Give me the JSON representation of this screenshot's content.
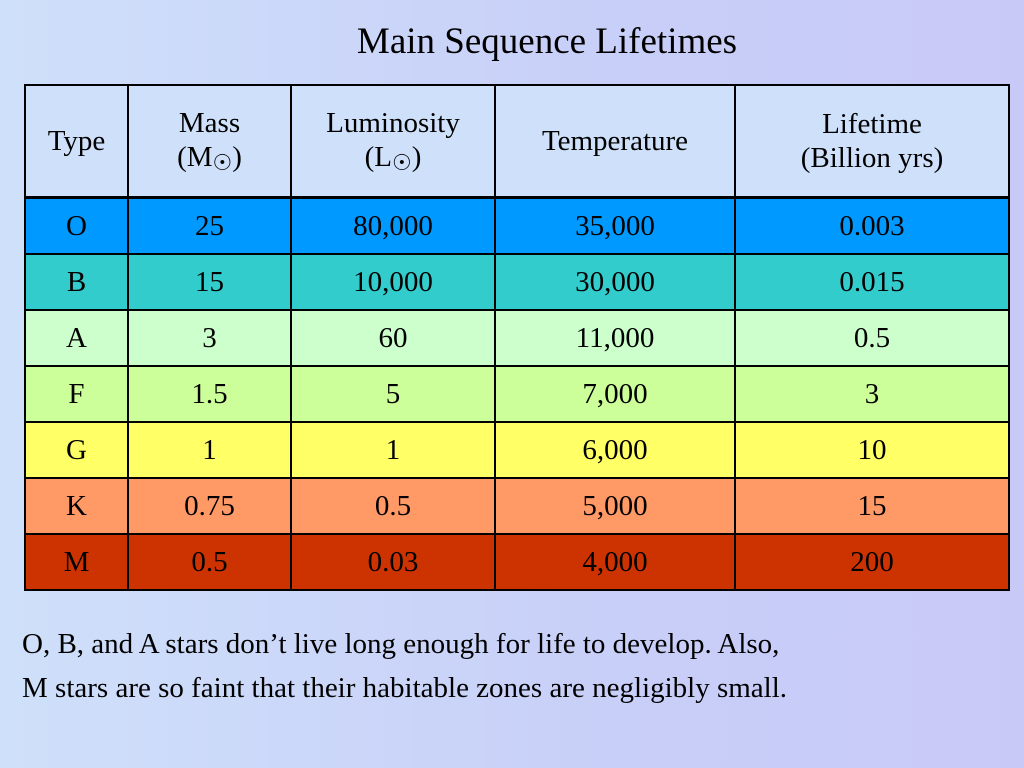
{
  "title": "Main Sequence Lifetimes",
  "table": {
    "header_bg": "#cfe0fa",
    "headers": [
      {
        "line1": "Type"
      },
      {
        "line1": "Mass",
        "line2_pre": "(M",
        "symbol": "☉",
        "line2_post": ")"
      },
      {
        "line1": "Luminosity",
        "line2_pre": "(L",
        "symbol": "☉",
        "line2_post": ")"
      },
      {
        "line1": "Temperature"
      },
      {
        "line1": "Lifetime",
        "line2_pre": "(Billion yrs)"
      }
    ],
    "rows": [
      {
        "type": "O",
        "mass": "25",
        "luminosity": "80,000",
        "temperature": "35,000",
        "lifetime": "0.003",
        "color": "#0099ff"
      },
      {
        "type": "B",
        "mass": "15",
        "luminosity": "10,000",
        "temperature": "30,000",
        "lifetime": "0.015",
        "color": "#33cccc"
      },
      {
        "type": "A",
        "mass": "3",
        "luminosity": "60",
        "temperature": "11,000",
        "lifetime": "0.5",
        "color": "#ccffcc"
      },
      {
        "type": "F",
        "mass": "1.5",
        "luminosity": "5",
        "temperature": "7,000",
        "lifetime": "3",
        "color": "#ccff99"
      },
      {
        "type": "G",
        "mass": "1",
        "luminosity": "1",
        "temperature": "6,000",
        "lifetime": "10",
        "color": "#ffff66"
      },
      {
        "type": "K",
        "mass": "0.75",
        "luminosity": "0.5",
        "temperature": "5,000",
        "lifetime": "15",
        "color": "#ff9966"
      },
      {
        "type": "M",
        "mass": "0.5",
        "luminosity": "0.03",
        "temperature": "4,000",
        "lifetime": "200",
        "color": "#cc3300"
      }
    ]
  },
  "footer": "O, B, and A stars don’t live long enough for life to develop.  Also, M stars are so faint that their habitable zones are negligibly small."
}
